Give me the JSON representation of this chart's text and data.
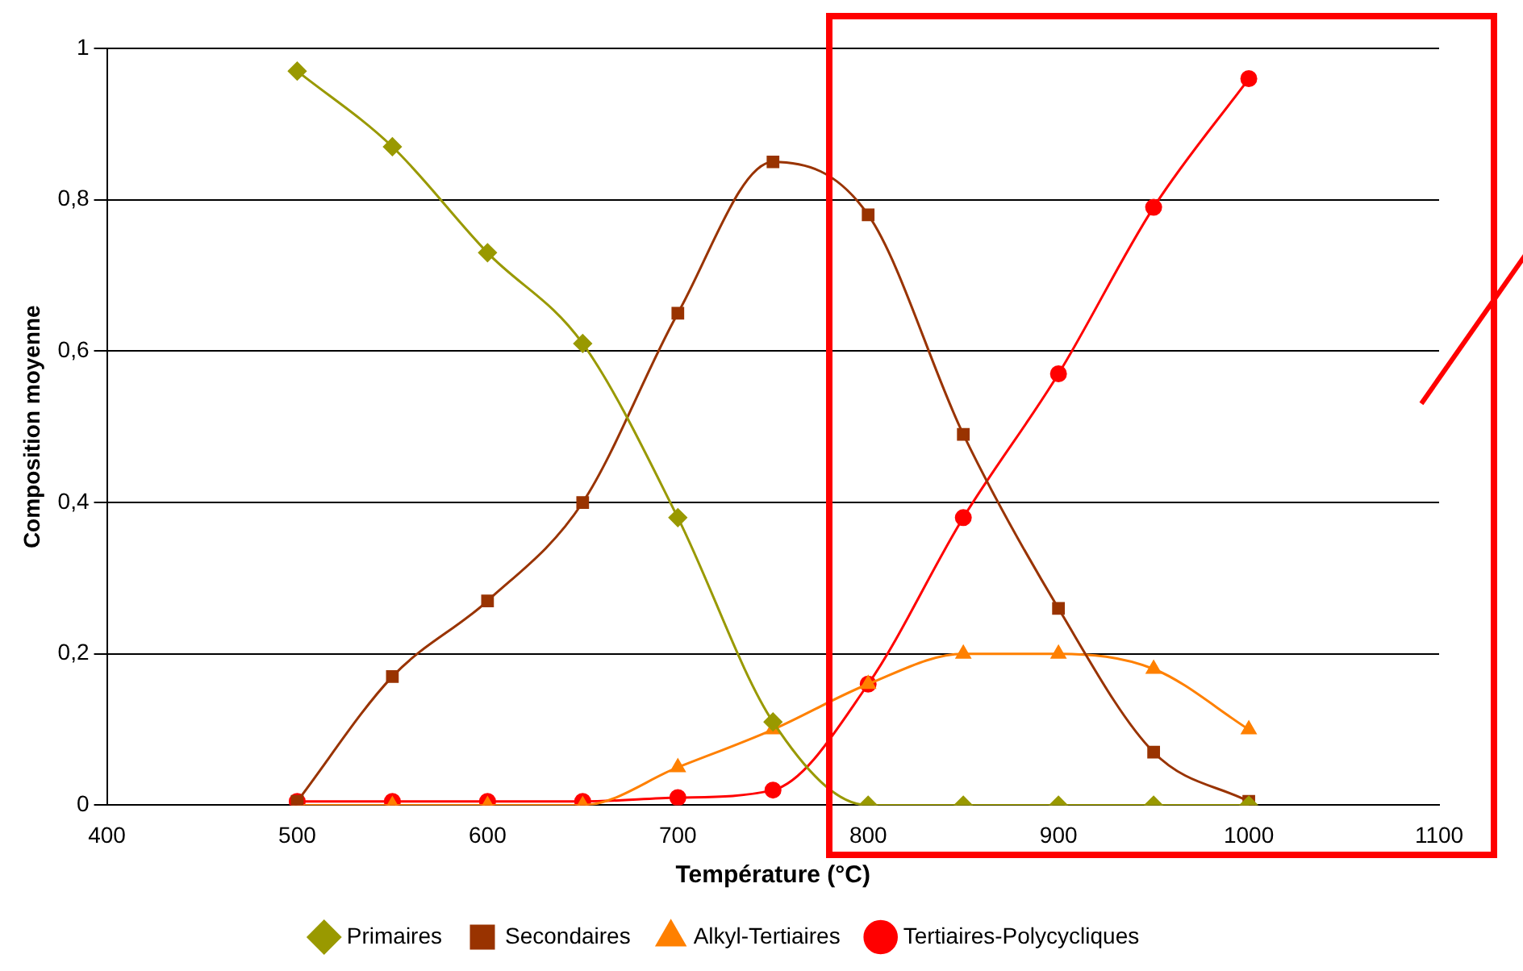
{
  "chart_data": {
    "type": "line",
    "xlabel": "Température (°C)",
    "ylabel": "Composition moyenne",
    "x": [
      500,
      550,
      600,
      650,
      700,
      750,
      800,
      850,
      900,
      950,
      1000
    ],
    "series": [
      {
        "name": "Primaires",
        "color": "#999900",
        "marker": "diamond",
        "values": [
          0.97,
          0.87,
          0.73,
          0.61,
          0.38,
          0.11,
          0,
          0,
          0,
          0,
          0
        ]
      },
      {
        "name": "Secondaires",
        "color": "#993300",
        "marker": "square",
        "values": [
          0.005,
          0.17,
          0.27,
          0.4,
          0.65,
          0.85,
          0.78,
          0.49,
          0.26,
          0.07,
          0.005
        ]
      },
      {
        "name": "Alkyl-Tertiaires",
        "color": "#ff8000",
        "marker": "triangle",
        "values": [
          0,
          0,
          0,
          0,
          0.05,
          0.1,
          0.16,
          0.2,
          0.2,
          0.18,
          0.1
        ]
      },
      {
        "name": "Tertiaires-Polycycliques",
        "color": "#ff0000",
        "marker": "circle",
        "values": [
          0.005,
          0.005,
          0.005,
          0.005,
          0.01,
          0.02,
          0.16,
          0.38,
          0.57,
          0.79,
          0.96
        ]
      }
    ],
    "xlim": [
      400,
      1100
    ],
    "xticks": [
      400,
      500,
      600,
      700,
      800,
      900,
      1000,
      1100
    ],
    "ylim": [
      0,
      1
    ],
    "yticks": [
      0,
      {
        "value": 0.2,
        "label": "0,2"
      },
      {
        "value": 0.4,
        "label": "0,4"
      },
      {
        "value": 0.6,
        "label": "0,6"
      },
      {
        "value": 0.8,
        "label": "0,8"
      },
      1
    ],
    "grid": "y",
    "legend": "bottom"
  }
}
